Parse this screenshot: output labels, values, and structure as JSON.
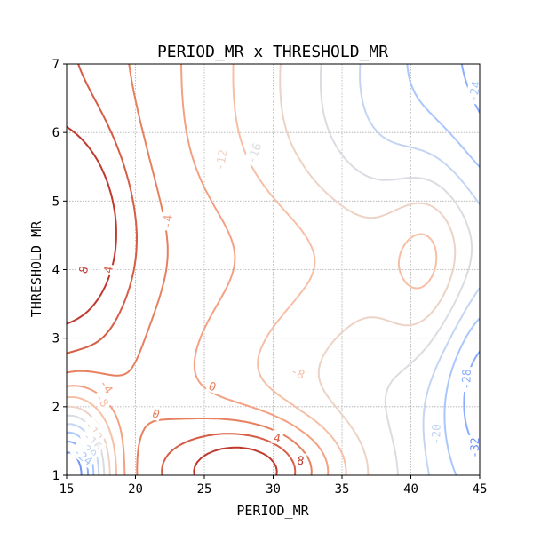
{
  "chart_data": {
    "type": "contour",
    "title": "PERIOD_MR x THRESHOLD_MR",
    "xlabel": "PERIOD_MR",
    "ylabel": "THRESHOLD_MR",
    "xlim": [
      15,
      45
    ],
    "ylim": [
      1,
      7
    ],
    "xticks": [
      "15",
      "20",
      "25",
      "30",
      "35",
      "40",
      "45"
    ],
    "yticks": [
      "1",
      "2",
      "3",
      "4",
      "5",
      "6",
      "7"
    ],
    "grid": true,
    "colormap": "coolwarm",
    "levels": [
      -32,
      -28,
      -24,
      -20,
      -16,
      -12,
      -8,
      -4,
      0,
      4,
      8
    ],
    "level_colors": {
      "-32": "#6f92f3",
      "-28": "#8badfd",
      "-24": "#a9c6fd",
      "-20": "#c4d5f3",
      "-16": "#d9dce1",
      "-12": "#ecd3c5",
      "-8": "#f6bfa6",
      "-4": "#f4a183",
      "0": "#e7805f",
      "4": "#d65d46",
      "8": "#c0392f"
    },
    "contour_labels": [
      {
        "text": "8",
        "level": 8,
        "x": 16.2,
        "y": 4.0,
        "rotate": -70
      },
      {
        "text": "4",
        "level": 4,
        "x": 18.0,
        "y": 4.0,
        "rotate": -80
      },
      {
        "text": "-4",
        "level": -4,
        "x": 22.3,
        "y": 4.7,
        "rotate": -85
      },
      {
        "text": "-12",
        "level": -12,
        "x": 26.2,
        "y": 5.6,
        "rotate": -80
      },
      {
        "text": "-16",
        "level": -16,
        "x": 28.6,
        "y": 5.7,
        "rotate": -70
      },
      {
        "text": "-24",
        "level": -24,
        "x": 44.6,
        "y": 6.6,
        "rotate": -80
      },
      {
        "text": "-28",
        "level": -28,
        "x": 44.0,
        "y": 2.4,
        "rotate": -88
      },
      {
        "text": "-20",
        "level": -20,
        "x": 41.8,
        "y": 1.6,
        "rotate": -88
      },
      {
        "text": "-32",
        "level": -32,
        "x": 44.6,
        "y": 1.4,
        "rotate": -88
      },
      {
        "text": "-8",
        "level": -8,
        "x": 31.8,
        "y": 2.5,
        "rotate": 25
      },
      {
        "text": "0",
        "level": 0,
        "x": 25.6,
        "y": 2.3,
        "rotate": 20
      },
      {
        "text": "0",
        "level": 0,
        "x": 21.5,
        "y": 1.9,
        "rotate": 25
      },
      {
        "text": "4",
        "level": 4,
        "x": 30.3,
        "y": 1.55,
        "rotate": 10
      },
      {
        "text": "8",
        "level": 8,
        "x": 32.0,
        "y": 1.22,
        "rotate": 10
      },
      {
        "text": "-4",
        "level": -4,
        "x": 17.9,
        "y": 2.3,
        "rotate": 55
      },
      {
        "text": "-8",
        "level": -8,
        "x": 17.6,
        "y": 2.1,
        "rotate": 55
      },
      {
        "text": "-12",
        "level": -12,
        "x": 17.0,
        "y": 1.65,
        "rotate": 55
      },
      {
        "text": "-16",
        "level": -16,
        "x": 16.9,
        "y": 1.5,
        "rotate": 45
      },
      {
        "text": "-20",
        "level": -20,
        "x": 16.5,
        "y": 1.38,
        "rotate": 40
      },
      {
        "text": "-24",
        "level": -24,
        "x": 16.2,
        "y": 1.28,
        "rotate": 40
      }
    ]
  }
}
